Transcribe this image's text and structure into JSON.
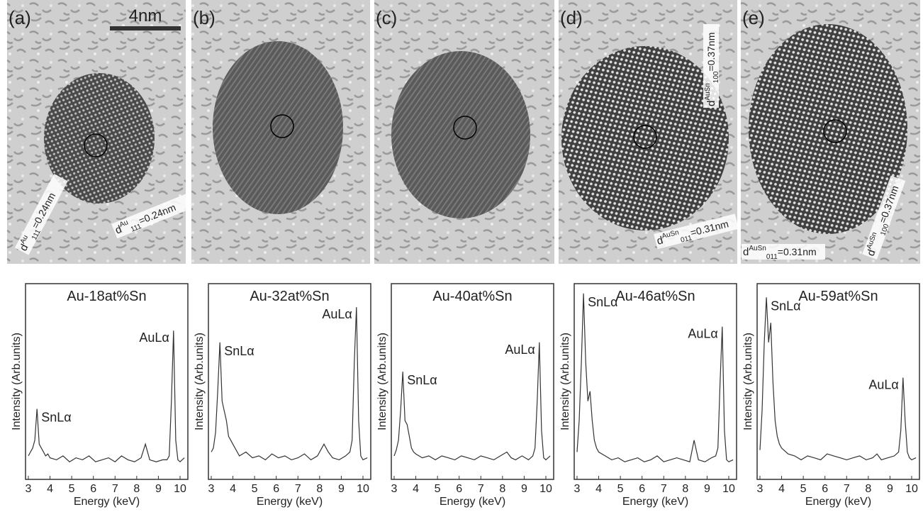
{
  "panels": [
    {
      "label": "(a)",
      "scale_bar": "4nm",
      "spacings": [
        {
          "symbol": "d",
          "sup": "Au",
          "sub": "111",
          "text": "=0.24nm"
        },
        {
          "symbol": "d",
          "sup": "Au",
          "sub": "111",
          "text": "=0.24nm"
        }
      ]
    },
    {
      "label": "(b)",
      "spacings": []
    },
    {
      "label": "(c)",
      "spacings": []
    },
    {
      "label": "(d)",
      "spacings": [
        {
          "symbol": "d",
          "sup": "AuSn",
          "sub": "100",
          "text": "=0.37nm"
        },
        {
          "symbol": "d",
          "sup": "AuSn",
          "sub": "011",
          "text": "=0.31nm"
        }
      ]
    },
    {
      "label": "(e)",
      "spacings": [
        {
          "symbol": "d",
          "sup": "AuSn",
          "sub": "011",
          "text": "=0.31nm"
        },
        {
          "symbol": "d",
          "sup": "AuSn",
          "sub": "100",
          "text": "=0.37nm"
        }
      ]
    }
  ],
  "chart_data": [
    {
      "type": "line",
      "title": "Au-18at%Sn",
      "x_label": "Energy (keV)",
      "y_label": "Intensity (Arb.units)",
      "color": "#333333",
      "annotations": [
        "SnLα",
        "AuLα"
      ],
      "x": [
        3.0,
        3.1,
        3.2,
        3.3,
        3.4,
        3.5,
        3.6,
        3.7,
        3.8,
        3.9,
        4.0,
        4.3,
        4.6,
        4.9,
        5.2,
        5.5,
        5.8,
        6.1,
        6.4,
        6.7,
        7.0,
        7.3,
        7.6,
        7.9,
        8.2,
        8.4,
        8.6,
        8.9,
        9.2,
        9.4,
        9.5,
        9.6,
        9.7,
        9.8,
        9.9,
        10.0,
        10.2
      ],
      "values": [
        12,
        14,
        16,
        20,
        36,
        18,
        16,
        14,
        12,
        13,
        11,
        10,
        12,
        9,
        11,
        10,
        12,
        9,
        10,
        11,
        9,
        12,
        10,
        9,
        11,
        18,
        10,
        9,
        10,
        10,
        12,
        40,
        76,
        20,
        10,
        9,
        11
      ],
      "xlim": [
        2.87,
        10.36
      ],
      "ylim": [
        0,
        100
      ],
      "xticks": [
        3,
        4,
        5,
        6,
        7,
        8,
        9,
        10
      ]
    },
    {
      "type": "line",
      "title": "Au-32at%Sn",
      "x_label": "Energy (keV)",
      "y_label": "Intensity (Arb.units)",
      "color": "#333333",
      "annotations": [
        "SnLα",
        "AuLα"
      ],
      "x": [
        3.0,
        3.1,
        3.2,
        3.3,
        3.4,
        3.5,
        3.6,
        3.7,
        3.8,
        3.9,
        4.0,
        4.3,
        4.6,
        4.9,
        5.2,
        5.5,
        5.8,
        6.1,
        6.4,
        6.7,
        7.0,
        7.3,
        7.6,
        7.9,
        8.2,
        8.4,
        8.6,
        8.9,
        9.2,
        9.4,
        9.5,
        9.6,
        9.7,
        9.8,
        9.9,
        10.0,
        10.2
      ],
      "values": [
        14,
        16,
        24,
        45,
        70,
        40,
        35,
        30,
        22,
        20,
        18,
        12,
        14,
        11,
        12,
        10,
        13,
        11,
        12,
        10,
        11,
        13,
        10,
        12,
        18,
        14,
        11,
        10,
        12,
        14,
        20,
        60,
        88,
        30,
        12,
        10,
        11
      ],
      "xlim": [
        2.87,
        10.36
      ],
      "ylim": [
        0,
        100
      ],
      "xticks": [
        3,
        4,
        5,
        6,
        7,
        8,
        9,
        10
      ]
    },
    {
      "type": "line",
      "title": "Au-40at%Sn",
      "x_label": "Energy (keV)",
      "y_label": "Intensity (Arb.units)",
      "color": "#333333",
      "annotations": [
        "SnLα",
        "AuLα"
      ],
      "x": [
        3.0,
        3.1,
        3.2,
        3.3,
        3.4,
        3.5,
        3.6,
        3.7,
        3.8,
        3.9,
        4.0,
        4.3,
        4.6,
        4.9,
        5.2,
        5.5,
        5.8,
        6.1,
        6.4,
        6.7,
        7.0,
        7.3,
        7.6,
        7.9,
        8.2,
        8.4,
        8.6,
        8.9,
        9.2,
        9.4,
        9.5,
        9.6,
        9.7,
        9.8,
        9.9,
        10.0,
        10.2
      ],
      "values": [
        12,
        15,
        20,
        35,
        55,
        30,
        28,
        22,
        16,
        14,
        13,
        11,
        12,
        10,
        12,
        11,
        10,
        12,
        11,
        10,
        12,
        11,
        10,
        12,
        14,
        11,
        10,
        12,
        10,
        12,
        16,
        40,
        70,
        25,
        11,
        10,
        12
      ],
      "xlim": [
        2.87,
        10.36
      ],
      "ylim": [
        0,
        100
      ],
      "xticks": [
        3,
        4,
        5,
        6,
        7,
        8,
        9,
        10
      ]
    },
    {
      "type": "line",
      "title": "Au-46at%Sn",
      "x_label": "Energy (keV)",
      "y_label": "Intensity (Arb.units)",
      "color": "#333333",
      "annotations": [
        "SnLα",
        "AuLα"
      ],
      "x": [
        3.0,
        3.1,
        3.2,
        3.3,
        3.4,
        3.5,
        3.6,
        3.7,
        3.8,
        3.9,
        4.0,
        4.3,
        4.6,
        4.9,
        5.2,
        5.5,
        5.8,
        6.1,
        6.4,
        6.7,
        7.0,
        7.3,
        7.6,
        7.9,
        8.2,
        8.4,
        8.6,
        8.9,
        9.2,
        9.4,
        9.5,
        9.6,
        9.7,
        9.8,
        9.9,
        10.0,
        10.2
      ],
      "values": [
        14,
        30,
        60,
        95,
        60,
        40,
        45,
        30,
        20,
        16,
        14,
        12,
        10,
        11,
        9,
        10,
        11,
        9,
        10,
        12,
        9,
        10,
        11,
        10,
        9,
        20,
        10,
        9,
        11,
        12,
        16,
        50,
        78,
        25,
        10,
        9,
        10
      ],
      "xlim": [
        2.87,
        10.36
      ],
      "ylim": [
        0,
        100
      ],
      "xticks": [
        3,
        4,
        5,
        6,
        7,
        8,
        9,
        10
      ]
    },
    {
      "type": "line",
      "title": "Au-59at%Sn",
      "x_label": "Energy (keV)",
      "y_label": "Intensity (Arb.units)",
      "color": "#333333",
      "annotations": [
        "SnLα",
        "AuLα"
      ],
      "x": [
        3.0,
        3.1,
        3.2,
        3.3,
        3.4,
        3.5,
        3.6,
        3.7,
        3.8,
        3.9,
        4.0,
        4.3,
        4.6,
        4.9,
        5.2,
        5.5,
        5.8,
        6.1,
        6.4,
        6.7,
        7.0,
        7.3,
        7.6,
        7.9,
        8.2,
        8.4,
        8.6,
        8.9,
        9.2,
        9.4,
        9.5,
        9.6,
        9.7,
        9.8,
        9.9,
        10.0,
        10.2
      ],
      "values": [
        15,
        35,
        70,
        93,
        70,
        80,
        50,
        30,
        22,
        18,
        16,
        13,
        12,
        10,
        12,
        11,
        10,
        13,
        12,
        11,
        10,
        11,
        12,
        10,
        11,
        13,
        10,
        11,
        12,
        14,
        25,
        52,
        30,
        14,
        11,
        10,
        11
      ],
      "xlim": [
        2.87,
        10.36
      ],
      "ylim": [
        0,
        100
      ],
      "xticks": [
        3,
        4,
        5,
        6,
        7,
        8,
        9,
        10
      ]
    }
  ]
}
